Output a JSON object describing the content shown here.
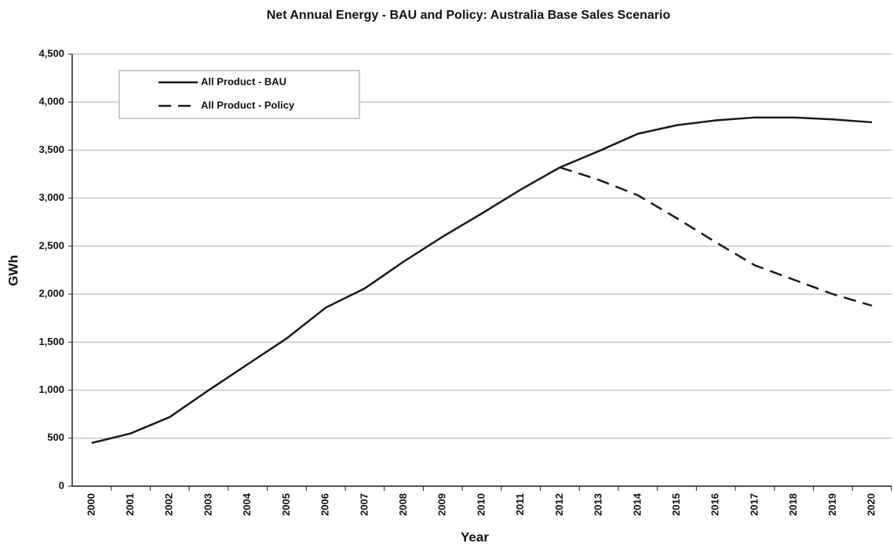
{
  "chart_data": {
    "type": "line",
    "title": "Net Annual Energy - BAU and Policy: Australia Base Sales Scenario",
    "x_label": "Year",
    "y_label": "GWh",
    "categories": [
      "2000",
      "2001",
      "2002",
      "2003",
      "2004",
      "2005",
      "2006",
      "2007",
      "2008",
      "2009",
      "2010",
      "2011",
      "2012",
      "2013",
      "2014",
      "2015",
      "2016",
      "2017",
      "2018",
      "2019",
      "2020"
    ],
    "series": [
      {
        "name": "All Product - BAU",
        "color": "#1a1a1a",
        "dashed": false,
        "values": [
          450,
          550,
          720,
          1000,
          1270,
          1540,
          1860,
          2060,
          2340,
          2600,
          2840,
          3090,
          3320,
          3490,
          3670,
          3760,
          3810,
          3840,
          3840,
          3820,
          3790
        ]
      },
      {
        "name": "All Product - Policy",
        "color": "#1a1a1a",
        "dashed": true,
        "values": [
          null,
          null,
          null,
          null,
          null,
          null,
          null,
          null,
          null,
          null,
          null,
          null,
          3320,
          3190,
          3030,
          2790,
          2540,
          2300,
          2150,
          2000,
          1880
        ]
      }
    ],
    "ylim": [
      0,
      4500
    ],
    "yticks": [
      0,
      500,
      {
        "value": 1000,
        "label": "1,000"
      },
      {
        "value": 1500,
        "label": "1,500"
      },
      {
        "value": 2000,
        "label": "2,000"
      },
      {
        "value": 2500,
        "label": "2,500"
      },
      {
        "value": 3000,
        "label": "3,000"
      },
      {
        "value": 3500,
        "label": "3,500"
      },
      {
        "value": 4000,
        "label": "4,000"
      },
      {
        "value": 4500,
        "label": "4,500"
      }
    ],
    "grid": true,
    "legend": "top-left"
  }
}
